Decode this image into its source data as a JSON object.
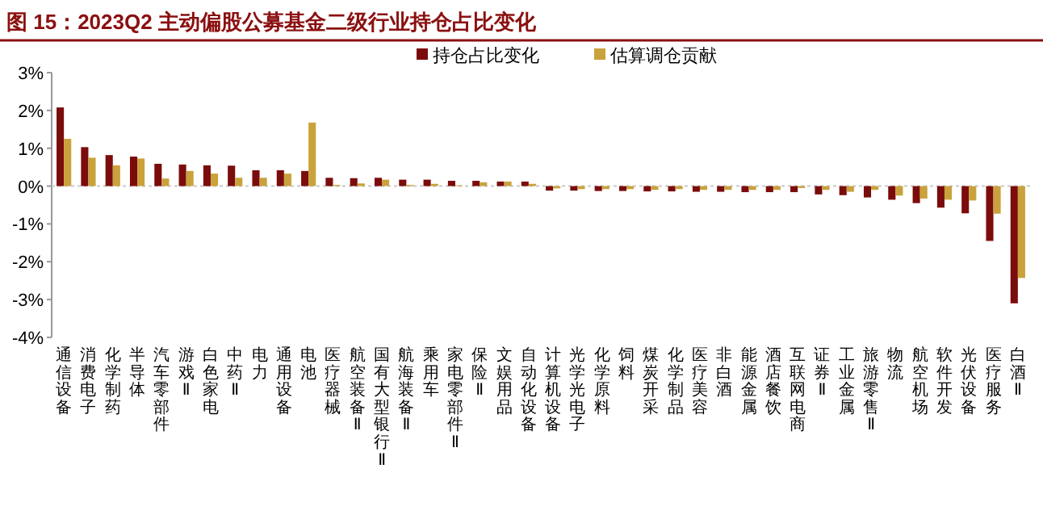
{
  "chart_data": {
    "type": "bar",
    "title": "图 15：2023Q2 主动偏股公募基金二级行业持仓占比变化",
    "categories": [
      "通信设备",
      "消费电子",
      "化学制药",
      "半导体",
      "汽车零部件",
      "游戏Ⅱ",
      "白色家电",
      "中药Ⅱ",
      "电力",
      "通用设备",
      "电池",
      "医疗器械",
      "航空装备Ⅱ",
      "国有大型银行Ⅱ",
      "航海装备Ⅱ",
      "乘用车",
      "家电零部件Ⅱ",
      "保险Ⅱ",
      "文娱用品",
      "自动化设备",
      "计算机设备",
      "光学光电子",
      "化学原料",
      "饲料",
      "煤炭开采",
      "化学制品",
      "医疗美容",
      "非白酒",
      "能源金属",
      "酒店餐饮",
      "互联网电商",
      "证券Ⅱ",
      "工业金属",
      "旅游零售Ⅱ",
      "物流",
      "航空机场",
      "软件开发",
      "光伏设备",
      "医疗服务",
      "白酒Ⅱ"
    ],
    "series": [
      {
        "name": "持仓占比变化",
        "color": "#7b0c0c",
        "values": [
          2.08,
          1.03,
          0.82,
          0.78,
          0.59,
          0.57,
          0.55,
          0.54,
          0.42,
          0.42,
          0.4,
          0.22,
          0.21,
          0.22,
          0.17,
          0.17,
          0.14,
          0.14,
          0.12,
          0.12,
          -0.12,
          -0.12,
          -0.13,
          -0.13,
          -0.14,
          -0.14,
          -0.15,
          -0.15,
          -0.16,
          -0.16,
          -0.16,
          -0.22,
          -0.24,
          -0.3,
          -0.36,
          -0.45,
          -0.57,
          -0.72,
          -1.45,
          -3.1
        ]
      },
      {
        "name": "估算调仓贡献",
        "color": "#c9a23c",
        "values": [
          1.25,
          0.75,
          0.55,
          0.73,
          0.2,
          0.4,
          0.33,
          0.22,
          0.22,
          0.33,
          1.68,
          0.03,
          0.07,
          0.17,
          0.03,
          0.06,
          0.02,
          0.1,
          0.12,
          0.06,
          -0.06,
          -0.08,
          -0.08,
          -0.08,
          -0.1,
          -0.08,
          -0.1,
          -0.1,
          -0.1,
          -0.1,
          -0.05,
          -0.1,
          -0.15,
          -0.1,
          -0.25,
          -0.33,
          -0.36,
          -0.38,
          -0.73,
          -2.43
        ]
      }
    ],
    "ylim": [
      -4,
      3
    ],
    "yticks": [
      {
        "value": -4,
        "label": "-4%"
      },
      {
        "value": -3,
        "label": "-3%"
      },
      {
        "value": -2,
        "label": "-2%"
      },
      {
        "value": -1,
        "label": "-1%"
      },
      {
        "value": 0,
        "label": "0%"
      },
      {
        "value": 1,
        "label": "1%"
      },
      {
        "value": 2,
        "label": "2%"
      },
      {
        "value": 3,
        "label": "3%"
      }
    ],
    "ref_lines": [
      {
        "axis": "y",
        "value": 0,
        "color": "#c8c8c8",
        "line_style": "dotted"
      }
    ],
    "grid": false,
    "legend": "top right"
  }
}
